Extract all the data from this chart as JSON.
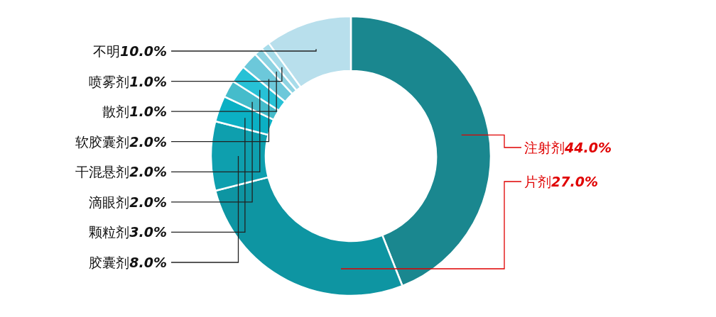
{
  "chart_data": {
    "type": "donut",
    "categories": [
      "注射剂",
      "片剂",
      "胶囊剂",
      "颗粒剂",
      "滴眼剂",
      "干混悬剂",
      "软胶囊剂",
      "散剂",
      "喷雾剂",
      "不明"
    ],
    "values": [
      44.0,
      27.0,
      8.0,
      3.0,
      2.0,
      2.0,
      2.0,
      1.0,
      1.0,
      10.0
    ],
    "value_labels": [
      "44.0%",
      "27.0%",
      "8.0%",
      "3.0%",
      "2.0%",
      "2.0%",
      "2.0%",
      "1.0%",
      "1.0%",
      "10.0%"
    ],
    "colors": [
      "#1a878f",
      "#0e95a2",
      "#0e9fae",
      "#0bb0c4",
      "#45bccb",
      "#27c1d6",
      "#6cc8da",
      "#8dd3e2",
      "#a7dcea",
      "#b8dfec"
    ]
  }
}
